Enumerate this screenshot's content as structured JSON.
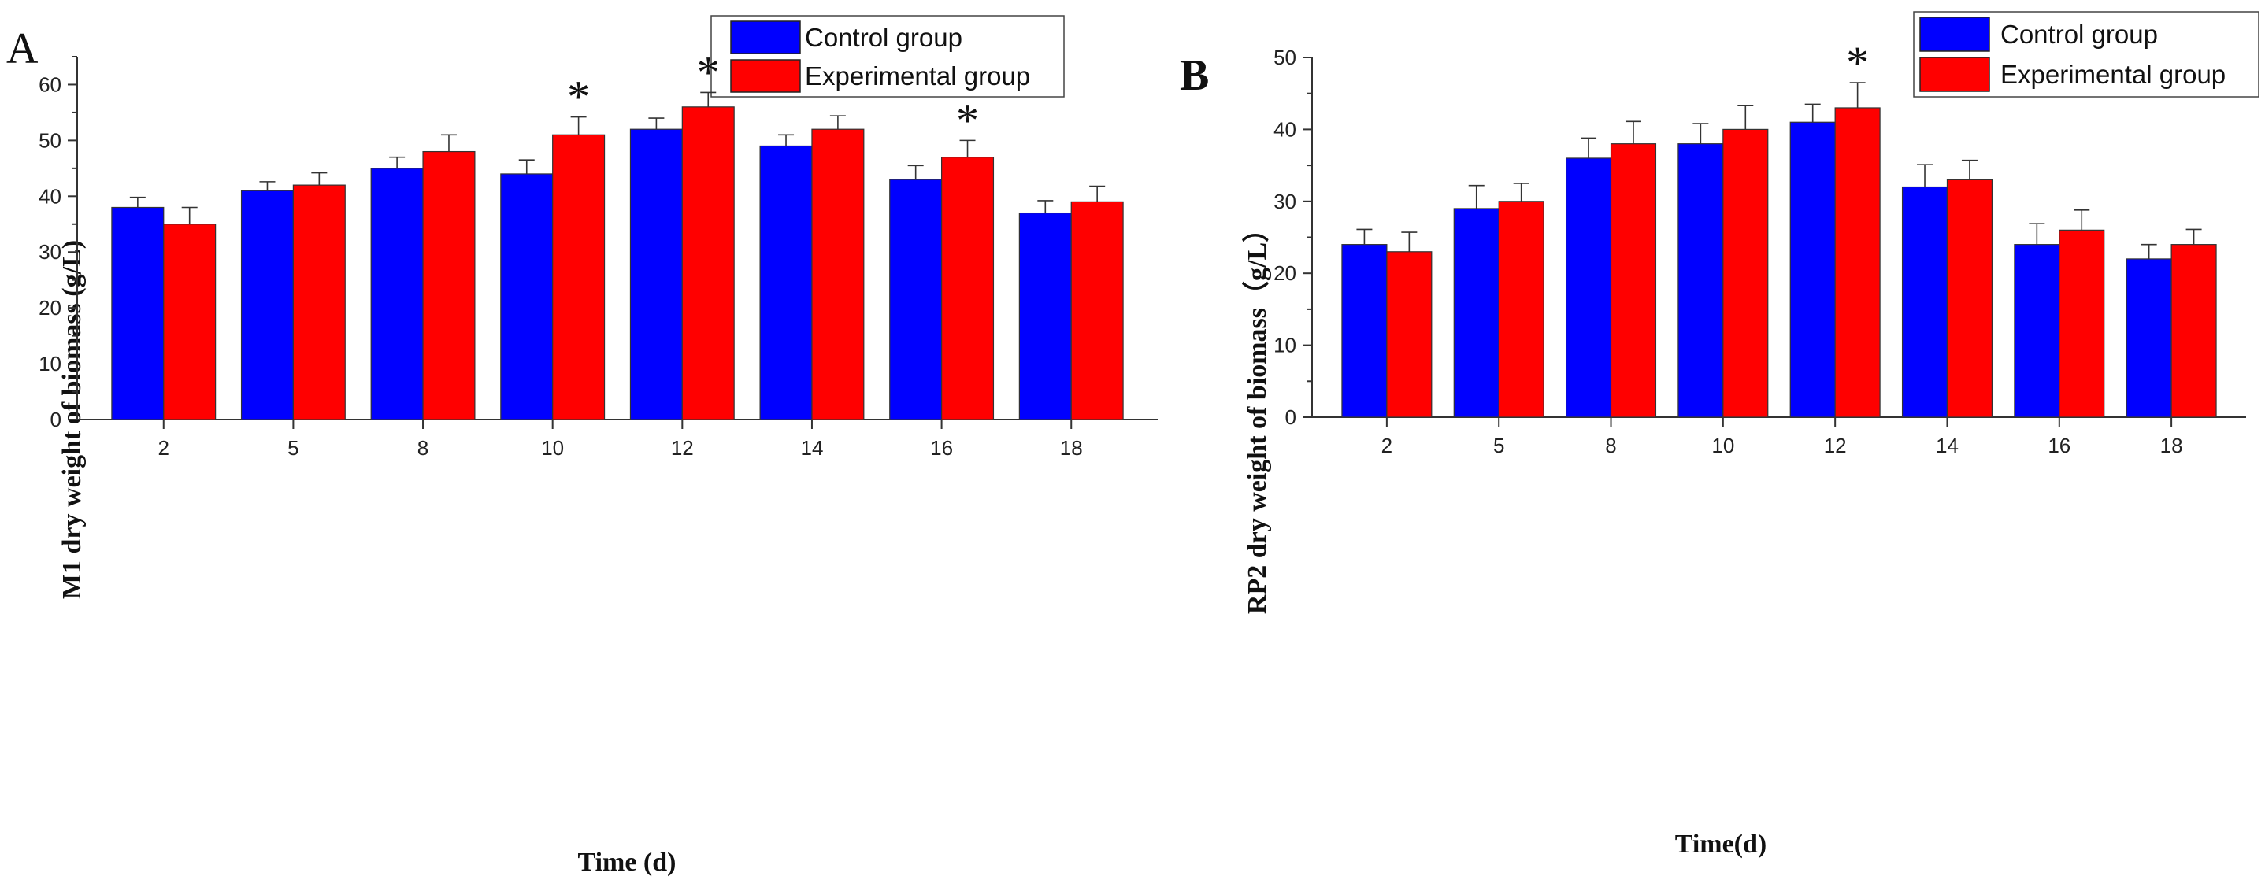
{
  "chart_data": [
    {
      "type": "bar",
      "panel_label": "A",
      "title": "",
      "xlabel": "Time (d)",
      "ylabel": "M1 dry weight of biomass (g/L)",
      "ylim": [
        0,
        65
      ],
      "yticks": [
        0,
        10,
        20,
        30,
        40,
        50,
        60
      ],
      "categories": [
        "2",
        "5",
        "8",
        "10",
        "12",
        "14",
        "16",
        "18"
      ],
      "series": [
        {
          "name": "Control group",
          "color": "#0000ff",
          "values": [
            38,
            41,
            45,
            44,
            52,
            49,
            43,
            37
          ],
          "errors": [
            1.8,
            1.6,
            2.0,
            2.5,
            2.0,
            2.0,
            2.5,
            2.2
          ]
        },
        {
          "name": "Experimental group",
          "color": "#ff0000",
          "values": [
            35,
            42,
            48,
            51,
            56,
            52,
            47,
            39
          ],
          "errors": [
            3.0,
            2.2,
            3.0,
            3.2,
            2.6,
            2.4,
            3.0,
            2.8
          ]
        }
      ],
      "significance": [
        {
          "category": "10",
          "series": "Experimental group",
          "mark": "*"
        },
        {
          "category": "12",
          "series": "Experimental group",
          "mark": "*"
        },
        {
          "category": "16",
          "series": "Experimental group",
          "mark": "*"
        }
      ],
      "legend_position": "top-right",
      "grid": false
    },
    {
      "type": "bar",
      "panel_label": "B",
      "title": "",
      "xlabel": "Time(d)",
      "ylabel": "RP2 dry weight of biomass（g/L）",
      "ylim": [
        0,
        50
      ],
      "yticks": [
        0,
        10,
        20,
        30,
        40,
        50
      ],
      "categories": [
        "2",
        "5",
        "8",
        "10",
        "12",
        "14",
        "16",
        "18"
      ],
      "series": [
        {
          "name": "Control group",
          "color": "#0000ff",
          "values": [
            24,
            29,
            36,
            38,
            41,
            32,
            24,
            22
          ],
          "errors": [
            2.1,
            3.2,
            2.8,
            2.8,
            2.5,
            3.1,
            2.9,
            2.0
          ]
        },
        {
          "name": "Experimental group",
          "color": "#ff0000",
          "values": [
            23,
            30,
            38,
            40,
            43,
            33,
            26,
            24
          ],
          "errors": [
            2.7,
            2.5,
            3.1,
            3.3,
            3.5,
            2.7,
            2.8,
            2.1
          ]
        }
      ],
      "significance": [
        {
          "category": "12",
          "series": "Experimental group",
          "mark": "*"
        }
      ],
      "legend_position": "top-right",
      "grid": false
    }
  ]
}
